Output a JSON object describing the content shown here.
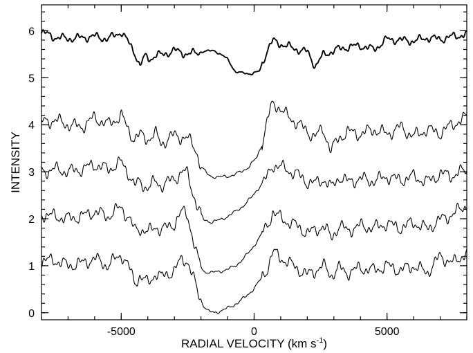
{
  "chart_data": {
    "type": "line",
    "title": "",
    "xlabel": "RADIAL VELOCITY (km s",
    "xlabel_unit_superscript": "-1",
    "xlabel_close": ")",
    "ylabel": "INTENSITY",
    "xlim": [
      -8000,
      8000
    ],
    "ylim": [
      -0.15,
      6.55
    ],
    "xticks": [
      -5000,
      0,
      5000
    ],
    "xtick_labels": [
      "-5000",
      "0",
      "5000"
    ],
    "yticks": [
      0,
      1,
      2,
      3,
      4,
      5,
      6
    ],
    "ytick_labels": [
      "0",
      "1",
      "2",
      "3",
      "4",
      "5",
      "6"
    ],
    "x_minor_step": 1000,
    "y_minor_step": 0.2,
    "grid": false,
    "legend": "none",
    "series_note_offsets": [
      5.85,
      3.9,
      2.9,
      2.0,
      1.0
    ],
    "series": [
      {
        "x": [
          -8000,
          -7500,
          -7000,
          -6500,
          -6000,
          -5500,
          -5000,
          -4700,
          -4500,
          -4300,
          -4100,
          -3900,
          -3700,
          -3500,
          -3000,
          -2500,
          -2000,
          -1500,
          -1000,
          -700,
          -400,
          -100,
          200,
          500,
          700,
          1000,
          1500,
          2000,
          2300,
          2600,
          3000,
          3500,
          4000,
          4500,
          5000,
          5500,
          6000,
          6500,
          7000,
          7500,
          8000
        ],
        "values": [
          5.97,
          5.86,
          5.83,
          5.85,
          5.88,
          5.82,
          5.98,
          5.72,
          5.55,
          5.25,
          5.45,
          5.4,
          5.48,
          5.48,
          5.58,
          5.5,
          5.55,
          5.58,
          5.4,
          5.12,
          5.1,
          5.08,
          5.14,
          5.6,
          5.78,
          5.72,
          5.62,
          5.55,
          5.25,
          5.48,
          5.58,
          5.65,
          5.68,
          5.6,
          5.82,
          5.8,
          5.78,
          5.85,
          5.82,
          5.88,
          5.92
        ]
      },
      {
        "x": [
          -8000,
          -7500,
          -7000,
          -6500,
          -6000,
          -5500,
          -5000,
          -4700,
          -4500,
          -4300,
          -4000,
          -3700,
          -3500,
          -3000,
          -2500,
          -2200,
          -2000,
          -1700,
          -1400,
          -1100,
          -800,
          -500,
          -200,
          100,
          300,
          500,
          700,
          900,
          1200,
          1600,
          2000,
          2300,
          2600,
          2900,
          3200,
          3500,
          4000,
          4500,
          5000,
          5500,
          6000,
          6500,
          7000,
          7500,
          8000
        ],
        "values": [
          4.05,
          4.1,
          4.0,
          3.95,
          4.15,
          4.0,
          4.2,
          3.85,
          3.7,
          3.78,
          3.7,
          3.8,
          3.6,
          3.78,
          3.7,
          3.5,
          3.1,
          2.92,
          2.88,
          2.9,
          2.92,
          3.0,
          3.1,
          3.3,
          3.6,
          4.1,
          4.45,
          4.4,
          4.2,
          4.05,
          3.85,
          3.75,
          3.9,
          3.45,
          3.72,
          3.85,
          3.8,
          3.9,
          3.8,
          3.95,
          3.75,
          3.9,
          3.82,
          4.02,
          4.15
        ]
      },
      {
        "x": [
          -8000,
          -7500,
          -7000,
          -6500,
          -6000,
          -5500,
          -5000,
          -4700,
          -4500,
          -4300,
          -4000,
          -3700,
          -3500,
          -3000,
          -2700,
          -2500,
          -2300,
          -2100,
          -1900,
          -1600,
          -1300,
          -1000,
          -700,
          -400,
          -100,
          200,
          500,
          700,
          900,
          1200,
          1600,
          2000,
          2300,
          2600,
          2900,
          3200,
          3500,
          4000,
          4500,
          5000,
          5500,
          6000,
          6500,
          7000,
          7500,
          8000
        ],
        "values": [
          3.0,
          3.05,
          3.0,
          3.05,
          3.15,
          3.05,
          3.2,
          2.95,
          2.7,
          2.78,
          2.65,
          2.8,
          2.7,
          2.85,
          3.0,
          2.95,
          2.55,
          2.2,
          1.98,
          1.93,
          1.97,
          2.05,
          2.15,
          2.28,
          2.45,
          2.68,
          2.88,
          3.15,
          3.12,
          3.05,
          2.95,
          2.78,
          2.75,
          2.85,
          2.65,
          2.9,
          2.78,
          2.85,
          2.8,
          2.9,
          2.82,
          2.9,
          2.78,
          2.95,
          2.92,
          3.05
        ]
      },
      {
        "x": [
          -8000,
          -7500,
          -7000,
          -6500,
          -6000,
          -5500,
          -5000,
          -4700,
          -4500,
          -4300,
          -4000,
          -3700,
          -3500,
          -3000,
          -2700,
          -2500,
          -2300,
          -2100,
          -1900,
          -1600,
          -1300,
          -1000,
          -700,
          -400,
          -100,
          200,
          500,
          700,
          900,
          1200,
          1600,
          2000,
          2300,
          2600,
          2900,
          3200,
          3500,
          4000,
          4500,
          5000,
          5500,
          6000,
          6500,
          7000,
          7500,
          8000
        ],
        "values": [
          2.1,
          2.05,
          2.0,
          2.05,
          2.15,
          2.05,
          2.25,
          2.0,
          1.75,
          1.8,
          1.7,
          1.85,
          1.75,
          1.9,
          2.15,
          2.1,
          1.55,
          1.1,
          0.88,
          0.85,
          0.88,
          0.92,
          1.0,
          1.15,
          1.35,
          1.6,
          1.85,
          2.15,
          2.05,
          1.95,
          1.85,
          1.7,
          1.75,
          1.85,
          1.6,
          1.85,
          1.75,
          1.85,
          1.8,
          1.9,
          1.8,
          1.92,
          1.78,
          1.98,
          2.1,
          2.3
        ]
      },
      {
        "x": [
          -8000,
          -7500,
          -7000,
          -6500,
          -6000,
          -5500,
          -5000,
          -4700,
          -4500,
          -4300,
          -4000,
          -3700,
          -3500,
          -3000,
          -2700,
          -2500,
          -2300,
          -2100,
          -1900,
          -1700,
          -1500,
          -1200,
          -900,
          -600,
          -300,
          0,
          300,
          500,
          700,
          900,
          1200,
          1600,
          2000,
          2300,
          2600,
          2900,
          3200,
          3500,
          4000,
          4500,
          5000,
          5500,
          6000,
          6500,
          7000,
          7500,
          8000
        ],
        "values": [
          1.1,
          1.12,
          1.0,
          1.05,
          1.15,
          1.0,
          1.25,
          0.95,
          0.65,
          0.78,
          0.62,
          0.85,
          0.75,
          0.9,
          1.15,
          1.1,
          0.75,
          0.4,
          0.15,
          0.02,
          0.0,
          0.05,
          0.12,
          0.22,
          0.35,
          0.52,
          0.75,
          0.95,
          1.3,
          1.2,
          1.1,
          0.95,
          0.8,
          0.9,
          1.0,
          0.8,
          0.95,
          0.85,
          0.95,
          0.9,
          1.0,
          0.9,
          1.0,
          0.85,
          1.2,
          1.05,
          1.3
        ]
      }
    ]
  }
}
